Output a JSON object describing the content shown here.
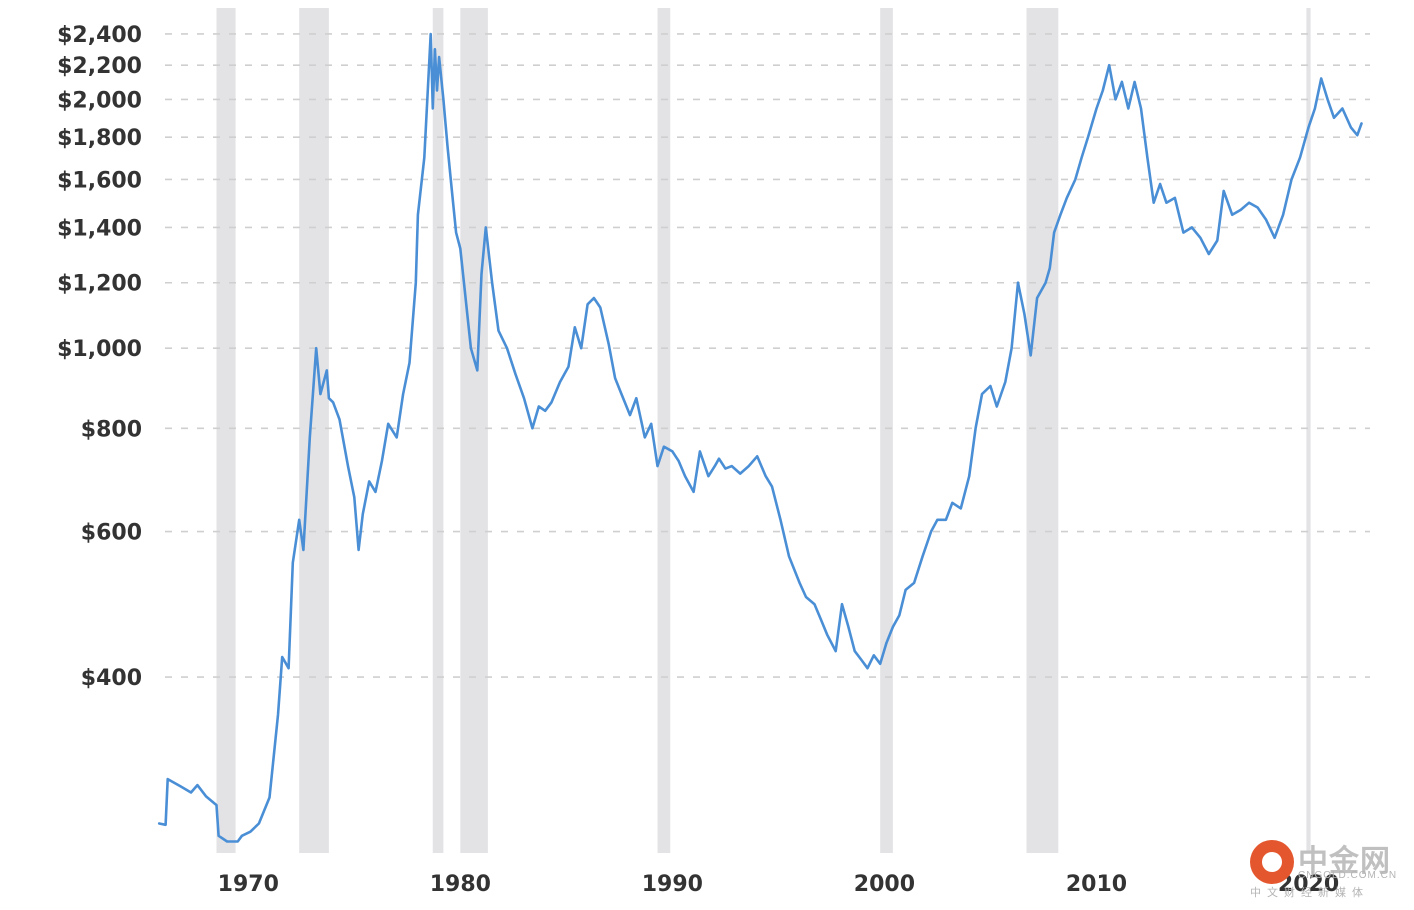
{
  "chart_data": {
    "type": "line",
    "title": "",
    "xlabel": "",
    "ylabel": "",
    "y_scale": "log",
    "xlim": [
      1965.6,
      2022.9
    ],
    "ylim": [
      245,
      2580
    ],
    "grid": true,
    "colors": {
      "series": "#4a8fd6",
      "recession": "#e3e3e6",
      "grid": "#cfcfcf",
      "text": "#333333"
    },
    "y_ticks": [
      {
        "value": 2400,
        "label": "$2,400"
      },
      {
        "value": 2200,
        "label": "$2,200"
      },
      {
        "value": 2000,
        "label": "$2,000"
      },
      {
        "value": 1800,
        "label": "$1,800"
      },
      {
        "value": 1600,
        "label": "$1,600"
      },
      {
        "value": 1400,
        "label": "$1,400"
      },
      {
        "value": 1200,
        "label": "$1,200"
      },
      {
        "value": 1000,
        "label": "$1,000"
      },
      {
        "value": 800,
        "label": "$800"
      },
      {
        "value": 600,
        "label": "$600"
      },
      {
        "value": 400,
        "label": "$400"
      }
    ],
    "x_ticks": [
      {
        "value": 1970,
        "label": "1970"
      },
      {
        "value": 1980,
        "label": "1980"
      },
      {
        "value": 1990,
        "label": "1990"
      },
      {
        "value": 2000,
        "label": "2000"
      },
      {
        "value": 2010,
        "label": "2010"
      },
      {
        "value": 2020,
        "label": "2020"
      }
    ],
    "recessions": [
      [
        1968.5,
        1969.4
      ],
      [
        1972.4,
        1973.8
      ],
      [
        1978.7,
        1979.2
      ],
      [
        1980.0,
        1981.3
      ],
      [
        1989.3,
        1989.9
      ],
      [
        1999.8,
        2000.4
      ],
      [
        2006.7,
        2008.2
      ],
      [
        2019.9,
        2020.1
      ]
    ],
    "series": [
      {
        "x": [
          1965.8,
          1966.1,
          1966.2,
          1966.8,
          1967.3,
          1967.6,
          1968.0,
          1968.5,
          1968.6,
          1969.0,
          1969.5,
          1969.7,
          1970.1,
          1970.5,
          1971.0,
          1971.4,
          1971.6,
          1971.9,
          1972.1,
          1972.4,
          1972.6,
          1972.9,
          1973.2,
          1973.4,
          1973.7,
          1973.8,
          1974.0,
          1974.3,
          1974.7,
          1975.0,
          1975.2,
          1975.4,
          1975.7,
          1976.0,
          1976.3,
          1976.6,
          1977.0,
          1977.3,
          1977.6,
          1977.9,
          1978.0,
          1978.3,
          1978.6,
          1978.7,
          1978.8,
          1978.9,
          1979.0,
          1979.2,
          1979.4,
          1979.6,
          1979.8,
          1980.0,
          1980.2,
          1980.5,
          1980.8,
          1981.0,
          1981.2,
          1981.5,
          1981.8,
          1982.2,
          1982.6,
          1983.0,
          1983.4,
          1983.7,
          1984.0,
          1984.3,
          1984.7,
          1985.1,
          1985.4,
          1985.7,
          1986.0,
          1986.3,
          1986.6,
          1987.0,
          1987.3,
          1987.6,
          1988.0,
          1988.3,
          1988.7,
          1989.0,
          1989.3,
          1989.6,
          1990.0,
          1990.3,
          1990.6,
          1991.0,
          1991.3,
          1991.7,
          1992.0,
          1992.2,
          1992.5,
          1992.8,
          1993.2,
          1993.6,
          1994.0,
          1994.4,
          1994.7,
          1995.1,
          1995.5,
          1996.0,
          1996.3,
          1996.7,
          1997.0,
          1997.3,
          1997.7,
          1998.0,
          1998.3,
          1998.6,
          1998.9,
          1999.2,
          1999.5,
          1999.8,
          2000.1,
          2000.4,
          2000.7,
          2001.0,
          2001.4,
          2001.8,
          2002.2,
          2002.5,
          2002.9,
          2003.2,
          2003.6,
          2004.0,
          2004.3,
          2004.6,
          2005.0,
          2005.3,
          2005.7,
          2006.0,
          2006.3,
          2006.6,
          2006.9,
          2007.2,
          2007.6,
          2007.8,
          2008.0,
          2008.3,
          2008.6,
          2009.0,
          2009.3,
          2009.6,
          2010.0,
          2010.3,
          2010.6,
          2010.9,
          2011.2,
          2011.5,
          2011.8,
          2012.1,
          2012.4,
          2012.7,
          2013.0,
          2013.3,
          2013.7,
          2014.1,
          2014.5,
          2014.9,
          2015.3,
          2015.7,
          2016.0,
          2016.4,
          2016.8,
          2017.2,
          2017.6,
          2018.0,
          2018.4,
          2018.8,
          2019.2,
          2019.6,
          2020.0,
          2020.3,
          2020.6,
          2020.9,
          2021.2,
          2021.6,
          2022.0,
          2022.3,
          2022.5
        ],
        "y": [
          266,
          265,
          301,
          295,
          290,
          296,
          287,
          280,
          257,
          253,
          253,
          257,
          260,
          266,
          286,
          360,
          423,
          410,
          550,
          620,
          570,
          780,
          1000,
          880,
          940,
          870,
          860,
          820,
          720,
          660,
          570,
          630,
          690,
          670,
          730,
          810,
          780,
          880,
          960,
          1200,
          1450,
          1700,
          2400,
          1950,
          2300,
          2050,
          2250,
          2000,
          1750,
          1550,
          1380,
          1320,
          1180,
          1000,
          940,
          1230,
          1400,
          1200,
          1050,
          1000,
          930,
          870,
          800,
          850,
          840,
          860,
          910,
          950,
          1060,
          1000,
          1130,
          1150,
          1120,
          1010,
          920,
          880,
          830,
          870,
          780,
          810,
          720,
          760,
          750,
          730,
          700,
          670,
          750,
          700,
          720,
          735,
          715,
          720,
          705,
          720,
          740,
          700,
          680,
          620,
          560,
          520,
          500,
          490,
          470,
          450,
          430,
          490,
          460,
          430,
          420,
          410,
          425,
          415,
          440,
          460,
          475,
          510,
          520,
          560,
          600,
          620,
          620,
          650,
          640,
          700,
          800,
          880,
          900,
          850,
          910,
          1000,
          1200,
          1100,
          980,
          1150,
          1200,
          1250,
          1380,
          1450,
          1520,
          1600,
          1700,
          1800,
          1950,
          2050,
          2200,
          2000,
          2100,
          1950,
          2100,
          1950,
          1700,
          1500,
          1580,
          1500,
          1520,
          1380,
          1400,
          1360,
          1300,
          1350,
          1550,
          1450,
          1470,
          1500,
          1480,
          1430,
          1360,
          1450,
          1600,
          1700,
          1850,
          1950,
          2120,
          2000,
          1900,
          1950,
          1850,
          1810,
          1870
        ]
      }
    ]
  },
  "watermark": {
    "title": "中金网",
    "url": "CNGOLD.COM.CN",
    "subtitle": "中文财经新媒体"
  }
}
